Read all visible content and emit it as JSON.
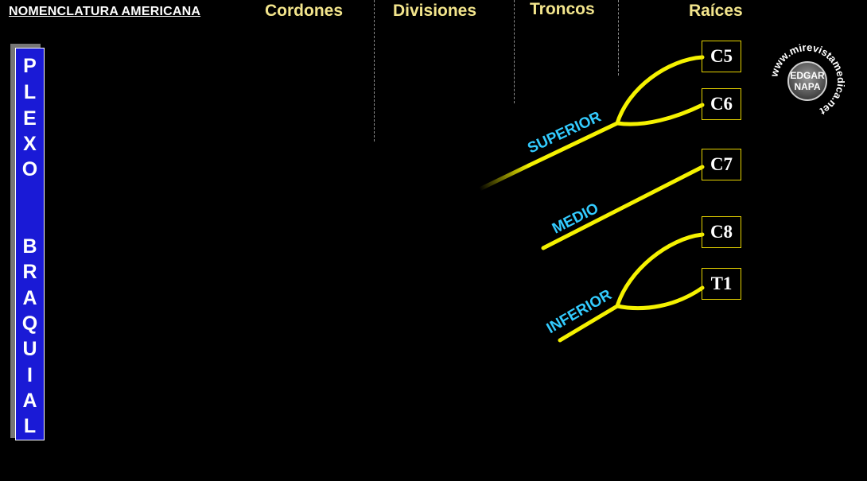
{
  "header": {
    "title": "NOMENCLATURA  AMERICANA",
    "columns": [
      "Cordones",
      "Divisiones",
      "Troncos",
      "Raíces"
    ]
  },
  "sidebar": {
    "letters": [
      "P",
      "L",
      "E",
      "X",
      "O",
      "B",
      "R",
      "A",
      "Q",
      "U",
      "I",
      "A",
      "L"
    ]
  },
  "roots": [
    "C5",
    "C6",
    "C7",
    "C8",
    "T1"
  ],
  "trunks": {
    "superior": "SUPERIOR",
    "medio": "MEDIO",
    "inferior": "INFERIOR"
  },
  "logo": {
    "line1": "EDGAR",
    "line2": "NAPA",
    "ring_text": "www.mirevistamedica.net"
  },
  "colors": {
    "nerve": "#f5f200",
    "label": "#33ccff",
    "header": "#f3e58c",
    "sidebar": "#1a1ad6"
  }
}
